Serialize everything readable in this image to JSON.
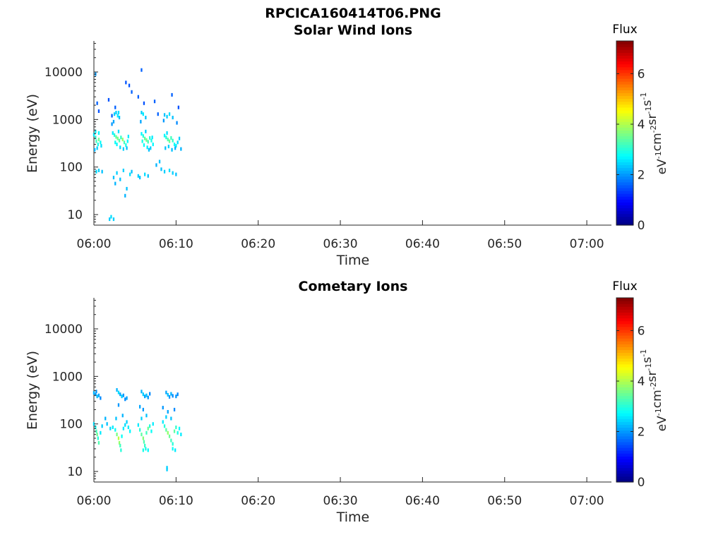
{
  "figure_title": "RPCICA160414T06.PNG",
  "colors": {
    "colormap": "jet",
    "axis": "#262626",
    "background": "#ffffff"
  },
  "chart_data": [
    {
      "type": "heatmap",
      "title": "Solar Wind Ions",
      "xlabel": "Time",
      "ylabel": "Energy (eV)",
      "yscale": "log",
      "ylim": [
        6,
        45000
      ],
      "xlim": [
        "06:00",
        "07:03"
      ],
      "x_ticks": [
        "06:00",
        "06:10",
        "06:20",
        "06:30",
        "06:40",
        "06:50",
        "07:00"
      ],
      "y_ticks": [
        "10",
        "100",
        "1000",
        "10000"
      ],
      "colorbar": {
        "title": "Flux",
        "label": "eV-1cm-2sr-1s-1",
        "range": [
          0,
          7.3
        ],
        "ticks": [
          "0",
          "2",
          "4",
          "6"
        ]
      },
      "points": [
        [
          0.2,
          9000,
          2.0
        ],
        [
          0.4,
          2200,
          1.6
        ],
        [
          0.6,
          1500,
          1.5
        ],
        [
          1.8,
          2600,
          1.5
        ],
        [
          2.6,
          1800,
          1.6
        ],
        [
          2.2,
          1200,
          1.6
        ],
        [
          3.9,
          6000,
          1.5
        ],
        [
          4.3,
          5200,
          1.5
        ],
        [
          4.6,
          3800,
          1.6
        ],
        [
          5.8,
          11000,
          1.6
        ],
        [
          5.4,
          3000,
          1.6
        ],
        [
          6.1,
          2200,
          1.5
        ],
        [
          7.4,
          2400,
          1.6
        ],
        [
          7.8,
          1300,
          1.6
        ],
        [
          9.5,
          3300,
          1.6
        ],
        [
          10.3,
          1800,
          1.5
        ],
        [
          2.5,
          1300,
          2.4
        ],
        [
          2.7,
          1400,
          2.4
        ],
        [
          2.9,
          1200,
          2.6
        ],
        [
          3.1,
          1100,
          2.3
        ],
        [
          3.0,
          1400,
          2.5
        ],
        [
          5.8,
          1400,
          2.4
        ],
        [
          6.0,
          1300,
          2.6
        ],
        [
          6.3,
          1100,
          2.3
        ],
        [
          8.6,
          1250,
          2.3
        ],
        [
          8.9,
          1150,
          2.4
        ],
        [
          9.2,
          1300,
          2.5
        ],
        [
          9.6,
          1100,
          2.3
        ],
        [
          2.2,
          800,
          2.0
        ],
        [
          2.4,
          900,
          2.1
        ],
        [
          5.7,
          900,
          2.1
        ],
        [
          8.5,
          950,
          2.0
        ],
        [
          10.1,
          850,
          1.9
        ],
        [
          0.0,
          480,
          2.6
        ],
        [
          0.2,
          420,
          3.0
        ],
        [
          0.3,
          350,
          3.2
        ],
        [
          0.5,
          300,
          2.9
        ],
        [
          0.6,
          380,
          3.5
        ],
        [
          0.8,
          330,
          2.8
        ],
        [
          0.4,
          250,
          2.4
        ],
        [
          0.1,
          230,
          2.2
        ],
        [
          0.9,
          280,
          2.5
        ],
        [
          0.2,
          560,
          2.6
        ],
        [
          0.6,
          520,
          2.7
        ],
        [
          2.3,
          520,
          2.6
        ],
        [
          2.5,
          470,
          3.0
        ],
        [
          2.7,
          430,
          3.4
        ],
        [
          2.9,
          400,
          3.6
        ],
        [
          3.1,
          360,
          3.3
        ],
        [
          3.3,
          420,
          3.1
        ],
        [
          3.5,
          380,
          3.8
        ],
        [
          3.7,
          330,
          3.2
        ],
        [
          3.9,
          290,
          2.9
        ],
        [
          4.1,
          350,
          2.7
        ],
        [
          4.2,
          440,
          2.6
        ],
        [
          2.8,
          300,
          2.7
        ],
        [
          3.2,
          260,
          2.5
        ],
        [
          3.6,
          240,
          2.4
        ],
        [
          4.0,
          250,
          2.3
        ],
        [
          2.6,
          330,
          2.8
        ],
        [
          3.0,
          560,
          2.5
        ],
        [
          5.8,
          500,
          2.7
        ],
        [
          6.0,
          450,
          3.0
        ],
        [
          6.2,
          400,
          3.4
        ],
        [
          6.4,
          370,
          3.6
        ],
        [
          6.6,
          340,
          3.2
        ],
        [
          6.8,
          410,
          3.0
        ],
        [
          7.0,
          360,
          2.9
        ],
        [
          7.2,
          300,
          2.7
        ],
        [
          6.1,
          290,
          2.8
        ],
        [
          6.5,
          260,
          2.6
        ],
        [
          6.9,
          250,
          2.4
        ],
        [
          7.1,
          420,
          2.6
        ],
        [
          5.9,
          350,
          2.9
        ],
        [
          6.3,
          560,
          2.4
        ],
        [
          6.7,
          230,
          2.3
        ],
        [
          8.6,
          460,
          2.7
        ],
        [
          8.8,
          420,
          3.0
        ],
        [
          9.0,
          380,
          3.3
        ],
        [
          9.2,
          350,
          3.5
        ],
        [
          9.4,
          410,
          3.2
        ],
        [
          9.6,
          360,
          3.1
        ],
        [
          9.8,
          300,
          2.8
        ],
        [
          10.0,
          280,
          2.6
        ],
        [
          10.2,
          330,
          2.5
        ],
        [
          10.4,
          400,
          2.4
        ],
        [
          10.6,
          240,
          2.2
        ],
        [
          8.7,
          250,
          2.3
        ],
        [
          9.1,
          270,
          2.4
        ],
        [
          9.5,
          230,
          2.3
        ],
        [
          9.9,
          250,
          2.2
        ],
        [
          8.9,
          520,
          2.5
        ],
        [
          0.3,
          80,
          2.5
        ],
        [
          0.6,
          85,
          2.4
        ],
        [
          1.0,
          80,
          2.3
        ],
        [
          2.4,
          60,
          2.3
        ],
        [
          2.6,
          45,
          2.2
        ],
        [
          2.8,
          75,
          2.4
        ],
        [
          3.2,
          55,
          2.3
        ],
        [
          3.6,
          85,
          2.4
        ],
        [
          3.8,
          25,
          2.2
        ],
        [
          4.0,
          35,
          2.3
        ],
        [
          4.4,
          70,
          2.5
        ],
        [
          4.6,
          80,
          2.3
        ],
        [
          5.4,
          65,
          2.4
        ],
        [
          5.6,
          60,
          2.3
        ],
        [
          6.2,
          70,
          2.5
        ],
        [
          6.6,
          65,
          2.3
        ],
        [
          7.6,
          110,
          2.2
        ],
        [
          8.2,
          90,
          2.3
        ],
        [
          8.6,
          80,
          2.4
        ],
        [
          9.2,
          85,
          2.5
        ],
        [
          9.6,
          75,
          2.4
        ],
        [
          10.0,
          70,
          2.3
        ],
        [
          8.0,
          130,
          2.3
        ],
        [
          1.9,
          8,
          2.4
        ],
        [
          2.1,
          9,
          2.5
        ],
        [
          2.4,
          8,
          2.4
        ]
      ]
    },
    {
      "type": "heatmap",
      "title": "Cometary Ions",
      "xlabel": "Time",
      "ylabel": "Energy (eV)",
      "yscale": "log",
      "ylim": [
        6,
        45000
      ],
      "xlim": [
        "06:00",
        "07:03"
      ],
      "x_ticks": [
        "06:00",
        "06:10",
        "06:20",
        "06:30",
        "06:40",
        "06:50",
        "07:00"
      ],
      "y_ticks": [
        "10",
        "100",
        "1000",
        "10000"
      ],
      "colorbar": {
        "title": "Flux",
        "label": "eV-1cm-2sr-1s-1",
        "range": [
          0,
          7.3
        ],
        "ticks": [
          "0",
          "2",
          "4",
          "6"
        ]
      },
      "points": [
        [
          0.0,
          450,
          2.2
        ],
        [
          0.2,
          420,
          2.0
        ],
        [
          0.4,
          380,
          2.3
        ],
        [
          0.6,
          400,
          2.1
        ],
        [
          0.8,
          350,
          1.9
        ],
        [
          0.3,
          480,
          2.0
        ],
        [
          2.8,
          520,
          2.2
        ],
        [
          3.0,
          460,
          2.5
        ],
        [
          3.2,
          420,
          2.1
        ],
        [
          3.4,
          380,
          2.4
        ],
        [
          3.6,
          400,
          2.0
        ],
        [
          3.8,
          330,
          1.9
        ],
        [
          4.0,
          350,
          2.1
        ],
        [
          5.8,
          480,
          2.2
        ],
        [
          6.0,
          420,
          2.4
        ],
        [
          6.2,
          380,
          2.1
        ],
        [
          6.4,
          400,
          2.3
        ],
        [
          6.6,
          360,
          2.0
        ],
        [
          6.8,
          430,
          1.9
        ],
        [
          8.8,
          460,
          2.1
        ],
        [
          9.0,
          410,
          2.3
        ],
        [
          9.2,
          370,
          2.0
        ],
        [
          9.4,
          430,
          2.2
        ],
        [
          9.6,
          390,
          1.9
        ],
        [
          10.0,
          380,
          2.0
        ],
        [
          10.2,
          420,
          1.9
        ],
        [
          3.0,
          250,
          2.0
        ],
        [
          5.6,
          230,
          2.1
        ],
        [
          6.0,
          200,
          2.0
        ],
        [
          8.4,
          220,
          2.0
        ],
        [
          9.0,
          180,
          2.1
        ],
        [
          9.8,
          200,
          1.9
        ],
        [
          0.0,
          100,
          2.5
        ],
        [
          0.2,
          85,
          2.8
        ],
        [
          0.3,
          70,
          3.2
        ],
        [
          0.4,
          60,
          3.5
        ],
        [
          0.5,
          50,
          3.0
        ],
        [
          0.6,
          40,
          3.3
        ],
        [
          0.8,
          65,
          2.6
        ],
        [
          1.0,
          90,
          2.4
        ],
        [
          1.4,
          130,
          2.2
        ],
        [
          1.6,
          100,
          2.3
        ],
        [
          2.0,
          80,
          2.5
        ],
        [
          2.3,
          85,
          2.6
        ],
        [
          2.6,
          75,
          2.8
        ],
        [
          2.8,
          60,
          3.6
        ],
        [
          3.0,
          50,
          4.1
        ],
        [
          3.1,
          40,
          3.8
        ],
        [
          3.2,
          35,
          3.2
        ],
        [
          3.3,
          28,
          3.0
        ],
        [
          3.4,
          55,
          2.8
        ],
        [
          3.6,
          80,
          2.6
        ],
        [
          3.8,
          95,
          2.5
        ],
        [
          4.0,
          110,
          2.4
        ],
        [
          4.2,
          85,
          2.6
        ],
        [
          4.4,
          70,
          2.7
        ],
        [
          2.7,
          130,
          2.3
        ],
        [
          3.5,
          150,
          2.2
        ],
        [
          5.4,
          95,
          2.6
        ],
        [
          5.6,
          75,
          3.0
        ],
        [
          5.8,
          60,
          3.4
        ],
        [
          6.0,
          50,
          3.7
        ],
        [
          6.1,
          42,
          3.3
        ],
        [
          6.2,
          35,
          3.1
        ],
        [
          6.3,
          30,
          2.9
        ],
        [
          6.4,
          65,
          3.2
        ],
        [
          6.6,
          80,
          3.5
        ],
        [
          6.8,
          90,
          3.0
        ],
        [
          7.0,
          70,
          2.8
        ],
        [
          7.2,
          100,
          2.6
        ],
        [
          5.8,
          130,
          2.4
        ],
        [
          6.4,
          150,
          2.3
        ],
        [
          6.0,
          28,
          2.9
        ],
        [
          6.6,
          28,
          2.7
        ],
        [
          8.4,
          110,
          2.6
        ],
        [
          8.6,
          90,
          3.0
        ],
        [
          8.8,
          75,
          3.4
        ],
        [
          9.0,
          65,
          3.8
        ],
        [
          9.2,
          55,
          3.5
        ],
        [
          9.4,
          45,
          3.2
        ],
        [
          9.6,
          38,
          3.0
        ],
        [
          9.8,
          70,
          3.4
        ],
        [
          10.0,
          85,
          3.1
        ],
        [
          10.2,
          65,
          2.9
        ],
        [
          10.4,
          80,
          2.7
        ],
        [
          10.6,
          60,
          2.6
        ],
        [
          8.8,
          140,
          2.4
        ],
        [
          9.4,
          130,
          2.3
        ],
        [
          9.6,
          30,
          2.8
        ],
        [
          9.9,
          28,
          2.6
        ],
        [
          8.9,
          12,
          2.4
        ],
        [
          8.9,
          11,
          2.4
        ]
      ]
    }
  ]
}
